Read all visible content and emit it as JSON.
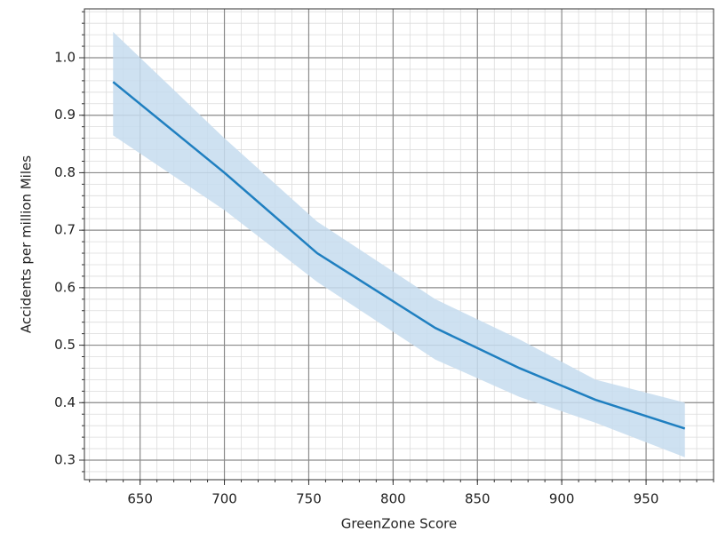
{
  "chart_data": {
    "type": "line",
    "xlabel": "GreenZone Score",
    "ylabel": "Accidents per million Miles",
    "x": [
      634,
      700,
      755,
      825,
      875,
      920,
      973
    ],
    "values": [
      0.958,
      0.8,
      0.66,
      0.53,
      0.46,
      0.405,
      0.355
    ],
    "upper": [
      1.045,
      0.86,
      0.715,
      0.58,
      0.51,
      0.44,
      0.4
    ],
    "lower": [
      0.865,
      0.735,
      0.61,
      0.475,
      0.41,
      0.365,
      0.305
    ],
    "color": "#1f7fc0",
    "band_color": "#c6dcef",
    "xlim": [
      617,
      990
    ],
    "ylim": [
      0.266,
      1.085
    ],
    "xticks": [
      650,
      700,
      750,
      800,
      850,
      900,
      950
    ],
    "yticks": [
      {
        "value": 0.3,
        "label": "0.3"
      },
      {
        "value": 0.4,
        "label": "0.4"
      },
      {
        "value": 0.5,
        "label": "0.5"
      },
      {
        "value": 0.6,
        "label": "0.6"
      },
      {
        "value": 0.7,
        "label": "0.7"
      },
      {
        "value": 0.8,
        "label": "0.8"
      },
      {
        "value": 0.9,
        "label": "0.9"
      },
      {
        "value": 1.0,
        "label": "1.0"
      }
    ],
    "grid": true,
    "minor_grid": true
  }
}
